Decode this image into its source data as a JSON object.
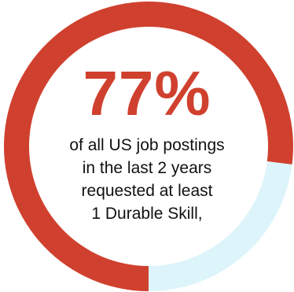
{
  "chart_data": {
    "type": "pie",
    "style": "donut",
    "slices": [
      {
        "value": 77,
        "color": "#d0402e"
      },
      {
        "value": 23,
        "color": "#ddf4fb"
      }
    ],
    "center_value": "77%",
    "caption_lines": [
      "of all US job postings",
      "in the last 2 years",
      "requested at least",
      "1 Durable Skill,"
    ]
  }
}
